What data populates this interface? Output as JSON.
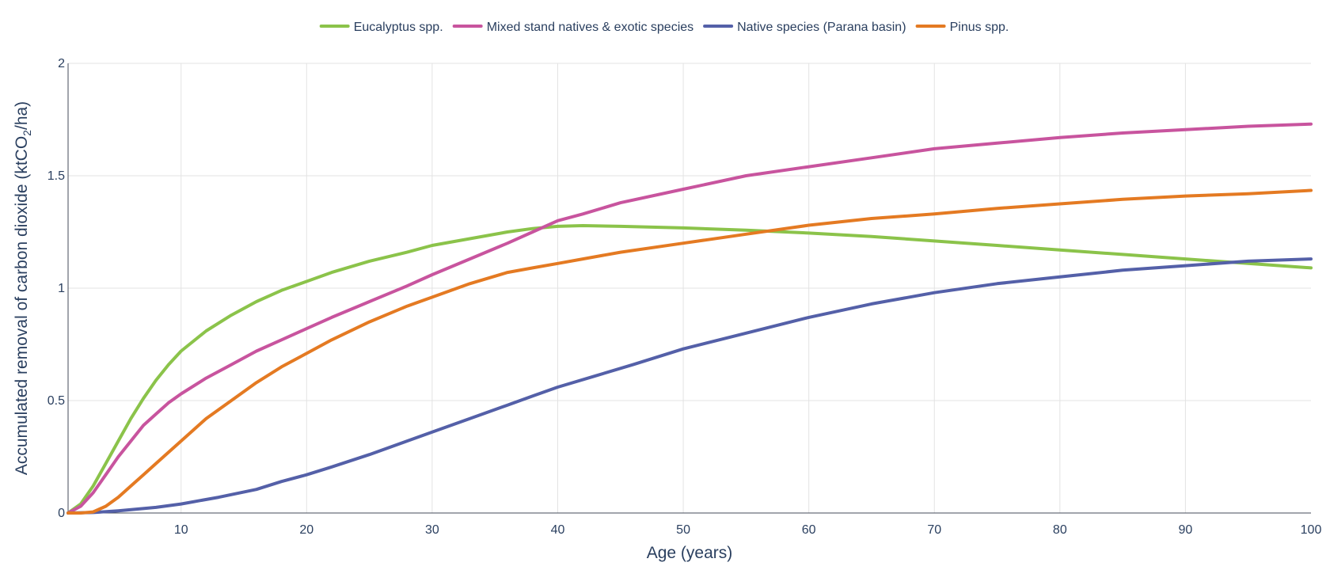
{
  "chart_data": {
    "type": "line",
    "title": "",
    "xlabel": "Age (years)",
    "ylabel_prefix": "Accumulated removal of carbon dioxide (ktCO",
    "ylabel_sub": "2",
    "ylabel_suffix": "/ha)",
    "xlim": [
      1,
      100
    ],
    "ylim": [
      0,
      2
    ],
    "xticks": [
      10,
      20,
      30,
      40,
      50,
      60,
      70,
      80,
      90,
      100
    ],
    "yticks": [
      0,
      0.5,
      1,
      1.5,
      2
    ],
    "ytick_labels": [
      "0",
      "0.5",
      "1",
      "1.5",
      "2"
    ],
    "legend_position": "top-center",
    "grid": true,
    "series": [
      {
        "name": "Eucalyptus spp.",
        "color": "#8bc34a",
        "x": [
          1,
          2,
          3,
          4,
          5,
          6,
          7,
          8,
          9,
          10,
          12,
          14,
          16,
          18,
          20,
          22,
          25,
          28,
          30,
          33,
          36,
          38,
          40,
          42,
          45,
          50,
          55,
          60,
          65,
          70,
          75,
          80,
          85,
          90,
          95,
          100
        ],
        "y": [
          0,
          0.04,
          0.12,
          0.22,
          0.32,
          0.42,
          0.51,
          0.59,
          0.66,
          0.72,
          0.81,
          0.88,
          0.94,
          0.99,
          1.03,
          1.07,
          1.12,
          1.16,
          1.19,
          1.22,
          1.25,
          1.265,
          1.275,
          1.278,
          1.275,
          1.268,
          1.258,
          1.245,
          1.23,
          1.21,
          1.19,
          1.17,
          1.15,
          1.13,
          1.11,
          1.09
        ]
      },
      {
        "name": "Mixed stand natives & exotic species",
        "color": "#c8549e",
        "x": [
          1,
          2,
          3,
          4,
          5,
          6,
          7,
          8,
          9,
          10,
          12,
          14,
          16,
          18,
          20,
          22,
          25,
          28,
          30,
          33,
          36,
          38,
          40,
          42,
          45,
          50,
          55,
          60,
          65,
          70,
          75,
          80,
          85,
          90,
          95,
          100
        ],
        "y": [
          0,
          0.03,
          0.09,
          0.17,
          0.25,
          0.32,
          0.39,
          0.44,
          0.49,
          0.53,
          0.6,
          0.66,
          0.72,
          0.77,
          0.82,
          0.87,
          0.94,
          1.01,
          1.06,
          1.13,
          1.2,
          1.25,
          1.3,
          1.33,
          1.38,
          1.44,
          1.5,
          1.54,
          1.58,
          1.62,
          1.645,
          1.67,
          1.69,
          1.705,
          1.72,
          1.73
        ]
      },
      {
        "name": "Native species (Parana basin)",
        "color": "#5460a8",
        "x": [
          1,
          3,
          5,
          8,
          10,
          13,
          16,
          18,
          20,
          22,
          25,
          28,
          30,
          33,
          36,
          38,
          40,
          43,
          46,
          50,
          55,
          60,
          65,
          70,
          75,
          80,
          85,
          90,
          95,
          100
        ],
        "y": [
          0,
          0.002,
          0.01,
          0.025,
          0.04,
          0.07,
          0.105,
          0.14,
          0.17,
          0.205,
          0.26,
          0.32,
          0.36,
          0.42,
          0.48,
          0.52,
          0.56,
          0.61,
          0.66,
          0.73,
          0.8,
          0.87,
          0.93,
          0.98,
          1.02,
          1.05,
          1.08,
          1.1,
          1.12,
          1.13
        ]
      },
      {
        "name": "Pinus spp.",
        "color": "#e47a22",
        "x": [
          1,
          2,
          3,
          4,
          5,
          6,
          7,
          8,
          9,
          10,
          12,
          14,
          16,
          18,
          20,
          22,
          25,
          28,
          30,
          33,
          36,
          38,
          40,
          42,
          45,
          50,
          55,
          60,
          65,
          70,
          75,
          80,
          85,
          90,
          95,
          100
        ],
        "y": [
          0,
          0,
          0.005,
          0.03,
          0.07,
          0.12,
          0.17,
          0.22,
          0.27,
          0.32,
          0.42,
          0.5,
          0.58,
          0.65,
          0.71,
          0.77,
          0.85,
          0.92,
          0.96,
          1.02,
          1.07,
          1.09,
          1.11,
          1.13,
          1.16,
          1.2,
          1.24,
          1.28,
          1.31,
          1.33,
          1.355,
          1.375,
          1.395,
          1.41,
          1.42,
          1.435
        ]
      }
    ]
  }
}
